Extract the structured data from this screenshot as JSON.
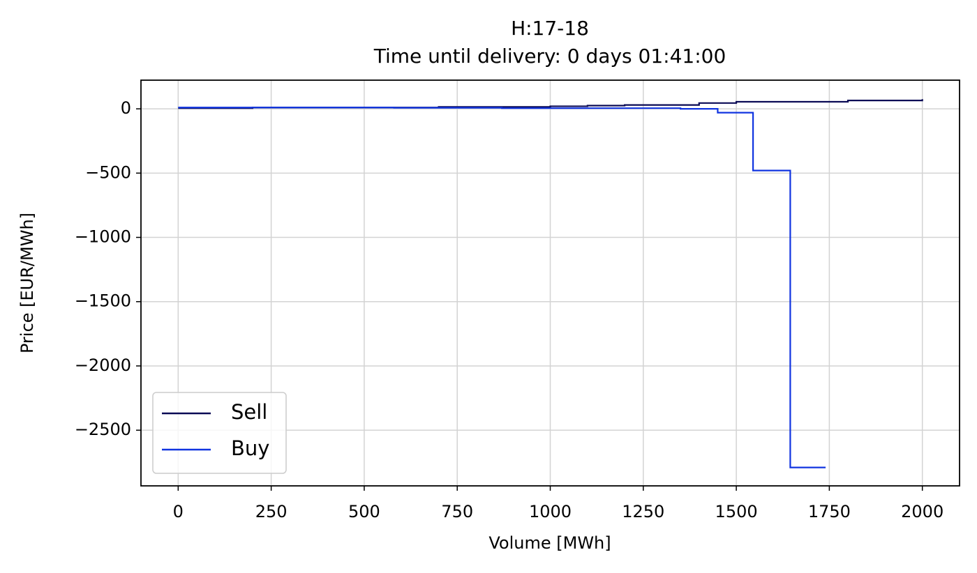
{
  "chart_data": {
    "type": "line",
    "steps": "post",
    "title": "H:17-18",
    "subtitle": "Time until delivery: 0 days 01:41:00",
    "x_label": "Volume [MWh]",
    "y_label": "Price [EUR/MWh]",
    "series": [
      {
        "name": "Sell",
        "color": "#0a0a55",
        "x": [
          0,
          200,
          700,
          1000,
          1100,
          1200,
          1400,
          1500,
          1800,
          2000
        ],
        "values": [
          5,
          10,
          15,
          20,
          25,
          30,
          45,
          55,
          65,
          75
        ]
      },
      {
        "name": "Buy",
        "color": "#1034e0",
        "x": [
          0,
          580,
          870,
          1350,
          1450,
          1545,
          1645,
          1740
        ],
        "values": [
          10,
          8,
          5,
          0,
          -30,
          -480,
          -2790,
          -2790
        ]
      }
    ],
    "xlim": [
      -100,
      2100
    ],
    "xticks": [
      0,
      250,
      500,
      750,
      1000,
      1250,
      1500,
      1750,
      2000
    ],
    "ylim": [
      -2933,
      223
    ],
    "yticks": [
      {
        "value": -2500,
        "label": "−2500"
      },
      {
        "value": -2000,
        "label": "−2000"
      },
      {
        "value": -1500,
        "label": "−1500"
      },
      {
        "value": -1000,
        "label": "−1000"
      },
      {
        "value": -500,
        "label": "−500"
      },
      0
    ],
    "grid": true,
    "legend": "lower left"
  }
}
